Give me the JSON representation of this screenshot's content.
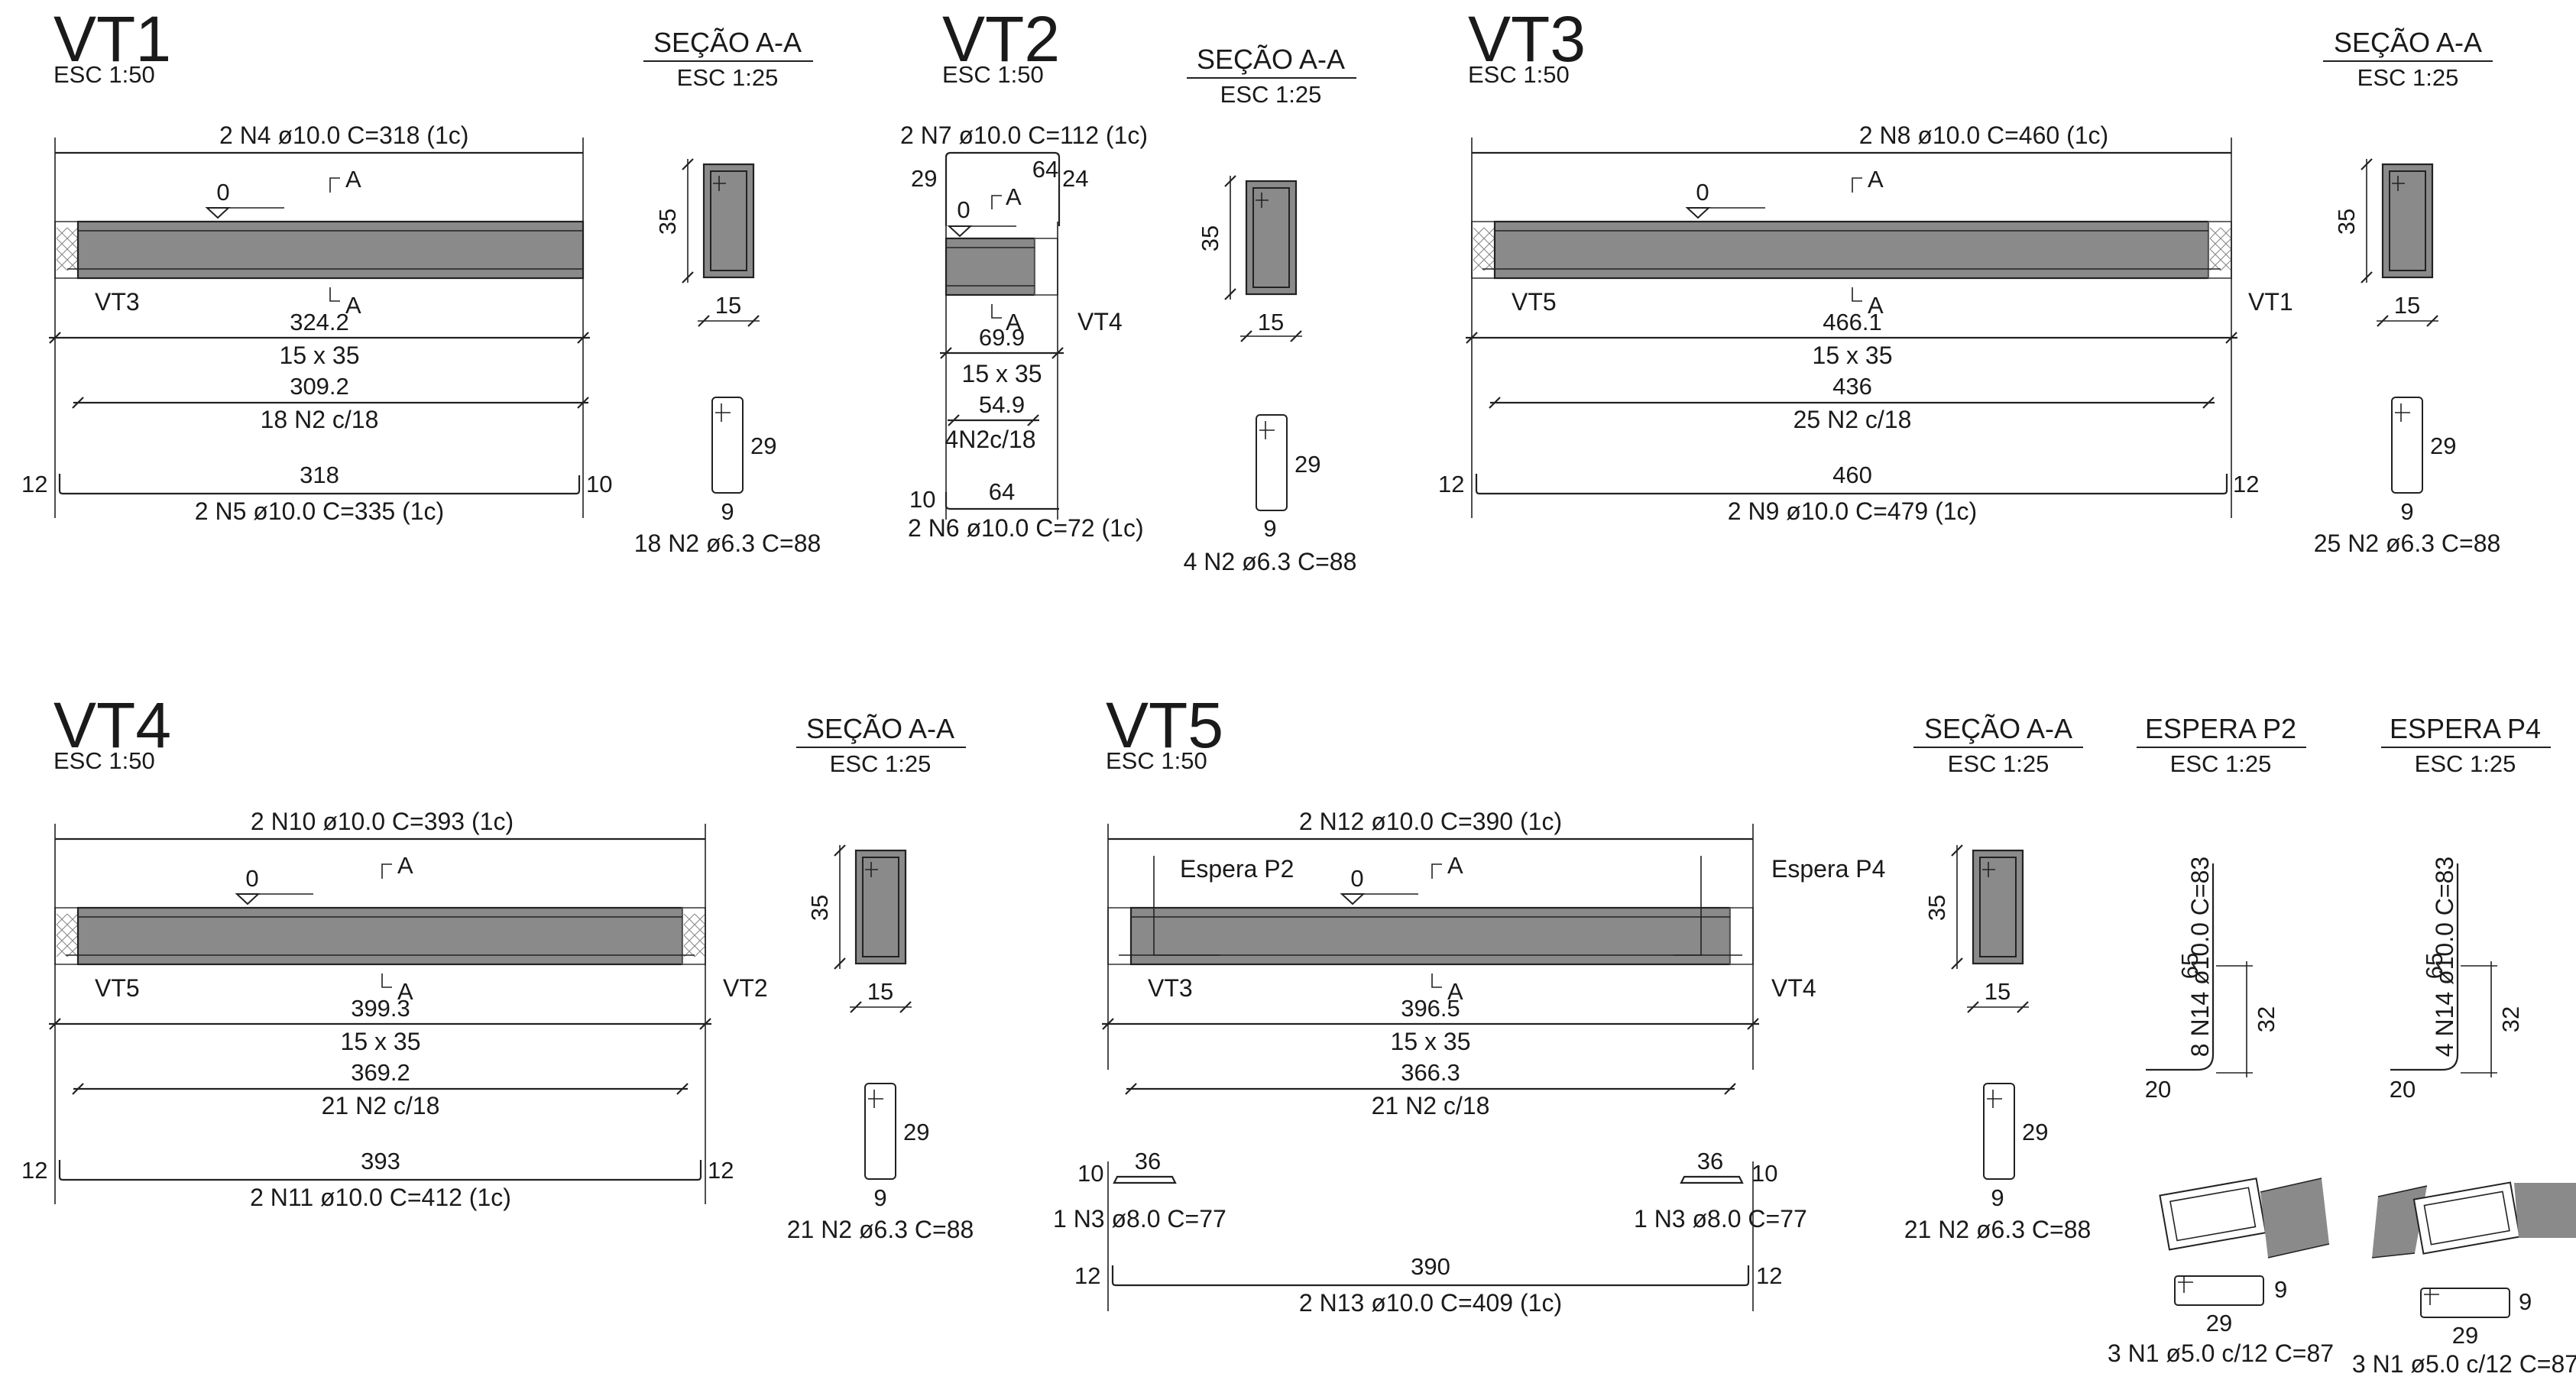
{
  "vt1": {
    "title": "VT1",
    "scale": "ESC 1:50",
    "top_bar": "2 N4 ø10.0 C=318  (1c)",
    "level": "0",
    "cut": "A",
    "left_support": "VT3",
    "span": "324.2",
    "size": "15 x 35",
    "stirrup_len": "309.2",
    "stirrups": "18 N2 c/18",
    "bottom_len": "318",
    "hook_l": "12",
    "hook_r": "10",
    "bottom_bar": "2 N5 ø10.0 C=335  (1c)",
    "section": {
      "title": "SEÇÃO A-A",
      "scale": "ESC 1:25",
      "h": "35",
      "w": "15"
    },
    "stirrup_detail": {
      "h": "29",
      "w": "9",
      "label": "18 N2 ø6.3 C=88"
    }
  },
  "vt2": {
    "title": "VT2",
    "scale": "ESC 1:50",
    "top_bar": "2 N7 ø10.0 C=112  (1c)",
    "top_len": "64",
    "hook_l": "29",
    "hook_r": "24",
    "level": "0",
    "cut": "A",
    "right_support": "VT4",
    "span": "69.9",
    "size": "15 x 35",
    "stirrup_len": "54.9",
    "stirrups": "4N2c/18",
    "bottom_len": "64",
    "bottom_hook": "10",
    "bottom_bar": "2 N6 ø10.0 C=72  (1c)",
    "section": {
      "title": "SEÇÃO A-A",
      "scale": "ESC 1:25",
      "h": "35",
      "w": "15"
    },
    "stirrup_detail": {
      "h": "29",
      "w": "9",
      "label": "4 N2 ø6.3 C=88"
    }
  },
  "vt3": {
    "title": "VT3",
    "scale": "ESC 1:50",
    "top_bar": "2 N8 ø10.0 C=460  (1c)",
    "level": "0",
    "cut": "A",
    "left_support": "VT5",
    "right_support": "VT1",
    "span": "466.1",
    "size": "15 x 35",
    "stirrup_len": "436",
    "stirrups": "25 N2 c/18",
    "bottom_len": "460",
    "hook_l": "12",
    "hook_r": "12",
    "bottom_bar": "2 N9 ø10.0 C=479  (1c)",
    "section": {
      "title": "SEÇÃO A-A",
      "scale": "ESC 1:25",
      "h": "35",
      "w": "15"
    },
    "stirrup_detail": {
      "h": "29",
      "w": "9",
      "label": "25 N2 ø6.3 C=88"
    }
  },
  "vt4": {
    "title": "VT4",
    "scale": "ESC 1:50",
    "top_bar": "2 N10 ø10.0 C=393  (1c)",
    "level": "0",
    "cut": "A",
    "left_support": "VT5",
    "right_support": "VT2",
    "span": "399.3",
    "size": "15 x 35",
    "stirrup_len": "369.2",
    "stirrups": "21 N2 c/18",
    "bottom_len": "393",
    "hook_l": "12",
    "hook_r": "12",
    "bottom_bar": "2 N11 ø10.0 C=412  (1c)",
    "section": {
      "title": "SEÇÃO A-A",
      "scale": "ESC 1:25",
      "h": "35",
      "w": "15"
    },
    "stirrup_detail": {
      "h": "29",
      "w": "9",
      "label": "21 N2 ø6.3 C=88"
    }
  },
  "vt5": {
    "title": "VT5",
    "scale": "ESC 1:50",
    "top_bar": "2 N12 ø10.0 C=390  (1c)",
    "level": "0",
    "cut": "A",
    "espera_l": "Espera P2",
    "espera_r": "Espera P4",
    "left_support": "VT3",
    "right_support": "VT4",
    "span": "396.5",
    "size": "15 x 35",
    "stirrup_len": "366.3",
    "stirrups": "21 N2 c/18",
    "n3_len": "36",
    "n3_hook": "10",
    "n3_bar": "1 N3 ø8.0 C=77",
    "bottom_len": "390",
    "hook_l": "12",
    "hook_r": "12",
    "bottom_bar": "2 N13 ø10.0 C=409  (1c)",
    "section": {
      "title": "SEÇÃO A-A",
      "scale": "ESC 1:25",
      "h": "35",
      "w": "15"
    },
    "stirrup_detail": {
      "h": "29",
      "w": "9",
      "label": "21 N2 ø6.3 C=88"
    }
  },
  "espera_p2": {
    "title": "ESPERA P2",
    "scale": "ESC 1:25",
    "bar": "8 N14 ø10.0 C=83",
    "h": "65",
    "foot": "20",
    "lap": "32",
    "stirrup_h": "9",
    "stirrup_w": "29",
    "stirrups": "3 N1 ø5.0 c/12 C=87"
  },
  "espera_p4": {
    "title": "ESPERA P4",
    "scale": "ESC 1:25",
    "bar": "4 N14 ø10.0 C=83",
    "h": "65",
    "foot": "20",
    "lap": "32",
    "stirrup_h": "9",
    "stirrup_w": "29",
    "stirrups": "3 N1 ø5.0 c/12 C=87"
  }
}
